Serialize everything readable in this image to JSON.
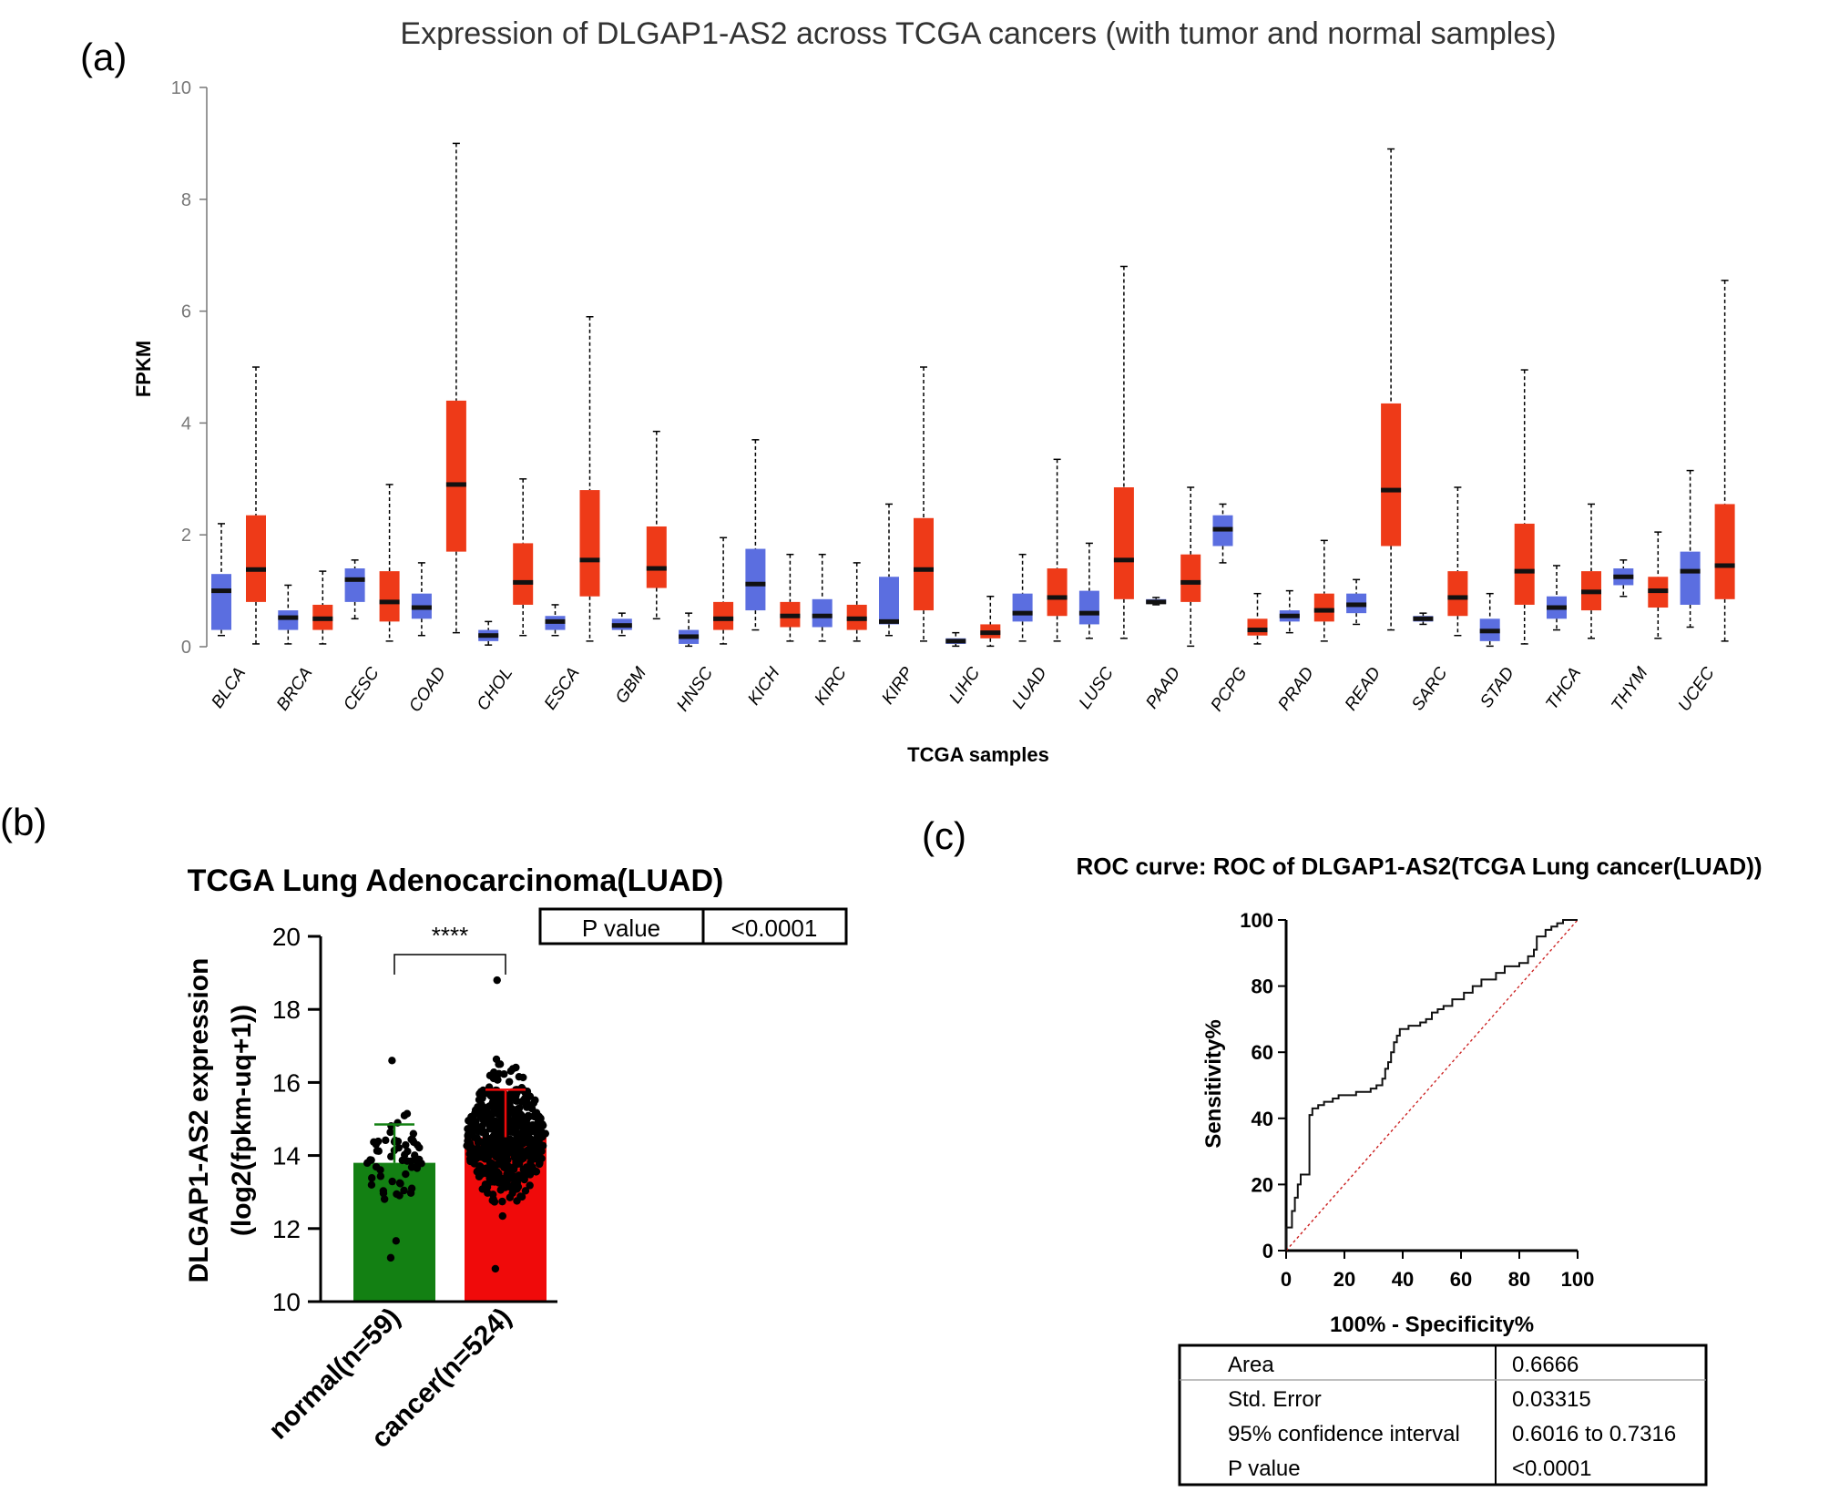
{
  "colors": {
    "normal_box": "#5b6ee0",
    "tumor_box": "#ee3a18",
    "median": "#111111",
    "axis_a": "#777777",
    "bar_normal": "#138013",
    "bar_cancer": "#f00a0a",
    "dot": "#000000",
    "roc_line": "#111111",
    "diagonal": "#cc2222"
  },
  "panel_labels": {
    "a": "(a)",
    "b": "(b)",
    "c": "(c)"
  },
  "chart_data": [
    {
      "type": "box",
      "id": "panel-a",
      "title": "Expression of DLGAP1-AS2 across TCGA cancers (with tumor and normal samples)",
      "xlabel": "TCGA samples",
      "ylabel": "FPKM",
      "ylim": [
        0,
        10
      ],
      "yticks": [
        "0",
        "2",
        "4",
        "6",
        "8",
        "10"
      ],
      "grid": false,
      "groups": [
        {
          "cancer": "BLCA",
          "normal": [
            0.2,
            0.3,
            1.0,
            1.3,
            2.2
          ],
          "tumor": [
            0.05,
            0.8,
            1.38,
            2.35,
            5.0
          ]
        },
        {
          "cancer": "BRCA",
          "normal": [
            0.05,
            0.3,
            0.52,
            0.65,
            1.1
          ],
          "tumor": [
            0.05,
            0.3,
            0.5,
            0.75,
            1.35
          ]
        },
        {
          "cancer": "CESC",
          "normal": [
            0.5,
            0.8,
            1.2,
            1.4,
            1.55
          ],
          "tumor": [
            0.1,
            0.45,
            0.8,
            1.35,
            2.9
          ]
        },
        {
          "cancer": "COAD",
          "normal": [
            0.2,
            0.5,
            0.7,
            0.95,
            1.5
          ],
          "tumor": [
            0.25,
            1.7,
            2.9,
            4.4,
            9.0
          ]
        },
        {
          "cancer": "CHOL",
          "normal": [
            0.03,
            0.1,
            0.2,
            0.3,
            0.45
          ],
          "tumor": [
            0.2,
            0.75,
            1.15,
            1.85,
            3.0
          ]
        },
        {
          "cancer": "ESCA",
          "normal": [
            0.2,
            0.3,
            0.45,
            0.55,
            0.75
          ],
          "tumor": [
            0.1,
            0.9,
            1.55,
            2.8,
            5.9
          ]
        },
        {
          "cancer": "GBM",
          "normal": [
            0.2,
            0.3,
            0.38,
            0.5,
            0.6
          ],
          "tumor": [
            0.5,
            1.05,
            1.4,
            2.15,
            3.85
          ]
        },
        {
          "cancer": "HNSC",
          "normal": [
            0.01,
            0.05,
            0.18,
            0.3,
            0.6
          ],
          "tumor": [
            0.05,
            0.3,
            0.5,
            0.8,
            1.95
          ]
        },
        {
          "cancer": "KICH",
          "normal": [
            0.3,
            0.65,
            1.12,
            1.75,
            3.7
          ],
          "tumor": [
            0.1,
            0.35,
            0.55,
            0.8,
            1.65
          ]
        },
        {
          "cancer": "KIRC",
          "normal": [
            0.1,
            0.35,
            0.55,
            0.85,
            1.65
          ],
          "tumor": [
            0.1,
            0.3,
            0.5,
            0.75,
            1.5
          ]
        },
        {
          "cancer": "KIRP",
          "normal": [
            0.2,
            0.4,
            0.45,
            1.25,
            2.55
          ],
          "tumor": [
            0.1,
            0.65,
            1.38,
            2.3,
            5.0
          ]
        },
        {
          "cancer": "LIHC",
          "normal": [
            0.01,
            0.05,
            0.1,
            0.15,
            0.25
          ],
          "tumor": [
            0.01,
            0.15,
            0.25,
            0.4,
            0.9
          ]
        },
        {
          "cancer": "LUAD",
          "normal": [
            0.1,
            0.45,
            0.6,
            0.95,
            1.65
          ],
          "tumor": [
            0.1,
            0.55,
            0.88,
            1.4,
            3.35
          ]
        },
        {
          "cancer": "LUSC",
          "normal": [
            0.15,
            0.4,
            0.6,
            1.0,
            1.85
          ],
          "tumor": [
            0.15,
            0.85,
            1.55,
            2.85,
            6.8
          ]
        },
        {
          "cancer": "PAAD",
          "normal": [
            0.75,
            0.77,
            0.8,
            0.85,
            0.88
          ],
          "tumor": [
            0.01,
            0.8,
            1.15,
            1.65,
            2.85
          ]
        },
        {
          "cancer": "PCPG",
          "normal": [
            1.5,
            1.8,
            2.1,
            2.35,
            2.55
          ],
          "tumor": [
            0.05,
            0.2,
            0.3,
            0.5,
            0.95
          ]
        },
        {
          "cancer": "PRAD",
          "normal": [
            0.25,
            0.45,
            0.55,
            0.65,
            1.0
          ],
          "tumor": [
            0.1,
            0.45,
            0.65,
            0.95,
            1.9
          ]
        },
        {
          "cancer": "READ",
          "normal": [
            0.4,
            0.6,
            0.75,
            0.95,
            1.2
          ],
          "tumor": [
            0.3,
            1.8,
            2.8,
            4.35,
            8.9
          ]
        },
        {
          "cancer": "SARC",
          "normal": [
            0.4,
            0.45,
            0.5,
            0.55,
            0.6
          ],
          "tumor": [
            0.2,
            0.55,
            0.88,
            1.35,
            2.85
          ]
        },
        {
          "cancer": "STAD",
          "normal": [
            0.01,
            0.1,
            0.28,
            0.5,
            0.95
          ],
          "tumor": [
            0.05,
            0.75,
            1.35,
            2.2,
            4.95
          ]
        },
        {
          "cancer": "THCA",
          "normal": [
            0.3,
            0.5,
            0.7,
            0.9,
            1.45
          ],
          "tumor": [
            0.15,
            0.65,
            0.98,
            1.35,
            2.55
          ]
        },
        {
          "cancer": "THYM",
          "normal": [
            0.9,
            1.1,
            1.25,
            1.4,
            1.55
          ],
          "tumor": [
            0.15,
            0.7,
            1.0,
            1.25,
            2.05
          ]
        },
        {
          "cancer": "UCEC",
          "normal": [
            0.35,
            0.75,
            1.35,
            1.7,
            3.15
          ],
          "tumor": [
            0.1,
            0.85,
            1.45,
            2.55,
            6.55
          ]
        }
      ]
    },
    {
      "type": "bar",
      "id": "panel-b",
      "title": "TCGA Lung Adenocarcinoma(LUAD)",
      "ylabel_line1": "DLGAP1-AS2 expression",
      "ylabel_line2": "(log2(fpkm-uq+1))",
      "ylim": [
        10,
        20
      ],
      "yticks": [
        "10",
        "12",
        "14",
        "16",
        "18",
        "20"
      ],
      "categories": [
        "normal(n=59)",
        "cancer(n=524)"
      ],
      "values": [
        13.8,
        14.5
      ],
      "error_sd": [
        1.05,
        1.3
      ],
      "ranges": [
        [
          11.2,
          16.6
        ],
        [
          10.9,
          18.8
        ]
      ],
      "n": [
        59,
        524
      ],
      "significance": "****",
      "pvalue_table": {
        "label": "P value",
        "value": "<0.0001"
      }
    },
    {
      "type": "line",
      "id": "panel-c",
      "title": "ROC curve: ROC of DLGAP1-AS2(TCGA Lung cancer(LUAD))",
      "xlabel": "100% - Specificity%",
      "ylabel": "Sensitivity%",
      "xlim": [
        0,
        100
      ],
      "ylim": [
        0,
        100
      ],
      "xticks": [
        "0",
        "20",
        "40",
        "60",
        "80",
        "100"
      ],
      "yticks": [
        "0",
        "20",
        "40",
        "60",
        "80",
        "100"
      ],
      "roc_points": [
        [
          0,
          0
        ],
        [
          0,
          7
        ],
        [
          2,
          7
        ],
        [
          2,
          12
        ],
        [
          3,
          12
        ],
        [
          3,
          16
        ],
        [
          4,
          16
        ],
        [
          4,
          20
        ],
        [
          5,
          20
        ],
        [
          5,
          23
        ],
        [
          8,
          23
        ],
        [
          8,
          41
        ],
        [
          9,
          41
        ],
        [
          9,
          43
        ],
        [
          11,
          43
        ],
        [
          11,
          44
        ],
        [
          13,
          44
        ],
        [
          13,
          45
        ],
        [
          16,
          45
        ],
        [
          16,
          46
        ],
        [
          18,
          46
        ],
        [
          18,
          47
        ],
        [
          24,
          47
        ],
        [
          24,
          48
        ],
        [
          29,
          48
        ],
        [
          29,
          49
        ],
        [
          31,
          49
        ],
        [
          31,
          50
        ],
        [
          33,
          50
        ],
        [
          33,
          52
        ],
        [
          34,
          52
        ],
        [
          34,
          55
        ],
        [
          35,
          55
        ],
        [
          35,
          57
        ],
        [
          36,
          57
        ],
        [
          36,
          60
        ],
        [
          37,
          60
        ],
        [
          37,
          63
        ],
        [
          38,
          63
        ],
        [
          38,
          65
        ],
        [
          39,
          65
        ],
        [
          39,
          67
        ],
        [
          42,
          67
        ],
        [
          42,
          68
        ],
        [
          46,
          68
        ],
        [
          46,
          69
        ],
        [
          48,
          69
        ],
        [
          48,
          70
        ],
        [
          50,
          70
        ],
        [
          50,
          72
        ],
        [
          52,
          72
        ],
        [
          52,
          73
        ],
        [
          54,
          73
        ],
        [
          54,
          74
        ],
        [
          57,
          74
        ],
        [
          57,
          76
        ],
        [
          61,
          76
        ],
        [
          61,
          78
        ],
        [
          64,
          78
        ],
        [
          64,
          80
        ],
        [
          67,
          80
        ],
        [
          67,
          82
        ],
        [
          72,
          82
        ],
        [
          72,
          84
        ],
        [
          75,
          84
        ],
        [
          75,
          86
        ],
        [
          80,
          86
        ],
        [
          80,
          87
        ],
        [
          83,
          87
        ],
        [
          83,
          89
        ],
        [
          85,
          89
        ],
        [
          85,
          91
        ],
        [
          86,
          91
        ],
        [
          86,
          95
        ],
        [
          89,
          95
        ],
        [
          89,
          97
        ],
        [
          91,
          97
        ],
        [
          91,
          98
        ],
        [
          93,
          98
        ],
        [
          93,
          99
        ],
        [
          95,
          99
        ],
        [
          95,
          100
        ],
        [
          100,
          100
        ]
      ],
      "reference_line": [
        [
          0,
          0
        ],
        [
          100,
          100
        ]
      ],
      "stats": [
        {
          "label": "Area",
          "value": "0.6666"
        },
        {
          "label": "Std. Error",
          "value": "0.03315"
        },
        {
          "label": "95% confidence interval",
          "value": "0.6016 to 0.7316"
        },
        {
          "label": "P value",
          "value": "<0.0001"
        }
      ]
    }
  ]
}
